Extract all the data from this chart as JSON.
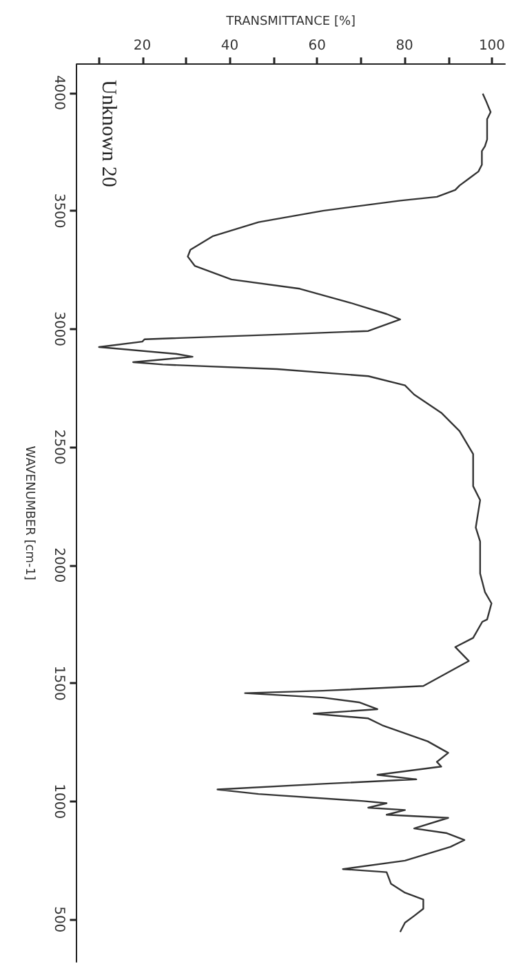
{
  "chart_data": {
    "type": "line",
    "title": "Unknown 20",
    "xlabel": "TRANSMITTANCE [%]",
    "ylabel": "WAVENUMBER [cm-1]",
    "x": [
      97.9,
      98.6,
      99.7,
      98.9,
      98.9,
      98.4,
      97.7,
      97.7,
      96.9,
      94.7,
      92.6,
      91.6,
      87.4,
      79.0,
      61.3,
      46.6,
      36.2,
      31.0,
      30.4,
      32.0,
      40.4,
      56.0,
      67.5,
      75.9,
      79.0,
      71.7,
      50.8,
      20.5,
      20.0,
      10.1,
      27.8,
      31.5,
      17.9,
      24.7,
      50.8,
      71.7,
      80.1,
      82.2,
      88.4,
      92.6,
      95.7,
      95.7,
      97.3,
      96.3,
      97.3,
      97.3,
      98.4,
      99.9,
      98.9,
      97.8,
      95.7,
      91.6,
      94.7,
      84.3,
      61.3,
      43.5,
      61.3,
      69.6,
      73.8,
      59.2,
      71.7,
      74.9,
      85.3,
      90.0,
      87.4,
      88.4,
      73.8,
      82.7,
      61.3,
      37.2,
      46.6,
      70.6,
      75.9,
      71.7,
      80.1,
      75.9,
      90.0,
      82.2,
      89.7,
      93.7,
      90.5,
      80.1,
      65.9,
      75.9,
      76.9,
      80.1,
      84.3,
      84.3,
      82.2,
      80.1,
      79.0
    ],
    "series": [
      {
        "color": "#333333",
        "values": [
          3996,
          3967,
          3918,
          3888,
          3802,
          3773,
          3753,
          3695,
          3666,
          3636,
          3607,
          3588,
          3559,
          3543,
          3500,
          3452,
          3393,
          3335,
          3306,
          3267,
          3209,
          3170,
          3111,
          3063,
          3040,
          2991,
          2976,
          2956,
          2946,
          2923,
          2894,
          2882,
          2859,
          2849,
          2830,
          2800,
          2761,
          2722,
          2645,
          2567,
          2470,
          2334,
          2275,
          2159,
          2100,
          1964,
          1886,
          1838,
          1770,
          1760,
          1692,
          1653,
          1594,
          1488,
          1468,
          1458,
          1439,
          1419,
          1390,
          1371,
          1351,
          1322,
          1254,
          1205,
          1167,
          1147,
          1112,
          1093,
          1074,
          1050,
          1031,
          1001,
          992,
          973,
          963,
          943,
          930,
          885,
          865,
          836,
          807,
          749,
          713,
          700,
          651,
          613,
          584,
          545,
          515,
          486,
          447
        ]
      }
    ],
    "xlim": [
      5,
      103
    ],
    "xticks": [
      {
        "value": 10,
        "label": null
      },
      20,
      {
        "value": 30,
        "label": null
      },
      40,
      {
        "value": 50,
        "label": null
      },
      60,
      {
        "value": 70,
        "label": null
      },
      80,
      {
        "value": 90,
        "label": null
      },
      100
    ],
    "ylim": [
      320,
      4120
    ],
    "yticks": [
      500,
      1000,
      1500,
      2000,
      2500,
      3000,
      3500,
      4000
    ],
    "grid": false,
    "marker": "none",
    "line_style": "solid"
  }
}
